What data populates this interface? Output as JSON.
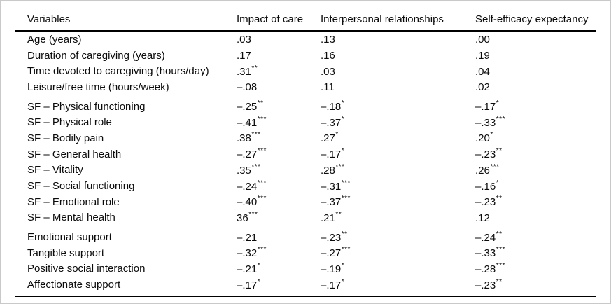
{
  "table": {
    "columns": [
      "Variables",
      "Impact of care",
      "Interpersonal relationships",
      "Self-efficacy expectancy"
    ],
    "rows": [
      {
        "variable": "Age (years)",
        "group_start": false,
        "cells": [
          {
            "value": ".03",
            "stars": ""
          },
          {
            "value": ".13",
            "stars": ""
          },
          {
            "value": ".00",
            "stars": ""
          }
        ]
      },
      {
        "variable": "Duration of caregiving (years)",
        "group_start": false,
        "cells": [
          {
            "value": ".17",
            "stars": ""
          },
          {
            "value": ".16",
            "stars": ""
          },
          {
            "value": ".19",
            "stars": ""
          }
        ]
      },
      {
        "variable": "Time devoted to caregiving (hours/day)",
        "group_start": false,
        "cells": [
          {
            "value": ".31",
            "stars": "**"
          },
          {
            "value": ".03",
            "stars": ""
          },
          {
            "value": ".04",
            "stars": ""
          }
        ]
      },
      {
        "variable": "Leisure/free time (hours/week)",
        "group_start": false,
        "cells": [
          {
            "value": "–.08",
            "stars": ""
          },
          {
            "value": ".11",
            "stars": ""
          },
          {
            "value": ".02",
            "stars": ""
          }
        ]
      },
      {
        "variable": "SF – Physical functioning",
        "group_start": true,
        "cells": [
          {
            "value": "–.25",
            "stars": "**"
          },
          {
            "value": "–.18",
            "stars": "*"
          },
          {
            "value": "–.17",
            "stars": "*"
          }
        ]
      },
      {
        "variable": "SF – Physical role",
        "group_start": false,
        "cells": [
          {
            "value": "–.41",
            "stars": "***"
          },
          {
            "value": "–.37",
            "stars": "*"
          },
          {
            "value": "–.33",
            "stars": "***"
          }
        ]
      },
      {
        "variable": "SF – Bodily pain",
        "group_start": false,
        "cells": [
          {
            "value": ".38",
            "stars": "***"
          },
          {
            "value": ".27",
            "stars": "*"
          },
          {
            "value": ".20",
            "stars": "*"
          }
        ]
      },
      {
        "variable": "SF – General health",
        "group_start": false,
        "cells": [
          {
            "value": "–.27",
            "stars": "***"
          },
          {
            "value": "–.17",
            "stars": "*"
          },
          {
            "value": "–.23",
            "stars": "**"
          }
        ]
      },
      {
        "variable": "SF – Vitality",
        "group_start": false,
        "cells": [
          {
            "value": ".35",
            "stars": "***"
          },
          {
            "value": ".28",
            "stars": "***"
          },
          {
            "value": ".26",
            "stars": "***"
          }
        ]
      },
      {
        "variable": "SF – Social functioning",
        "group_start": false,
        "cells": [
          {
            "value": "–.24",
            "stars": "***"
          },
          {
            "value": "–.31",
            "stars": "***"
          },
          {
            "value": "–.16",
            "stars": "*"
          }
        ]
      },
      {
        "variable": "SF – Emotional role",
        "group_start": false,
        "cells": [
          {
            "value": "–.40",
            "stars": "***"
          },
          {
            "value": "–.37",
            "stars": "***"
          },
          {
            "value": "–.23",
            "stars": "**"
          }
        ]
      },
      {
        "variable": "SF – Mental health",
        "group_start": false,
        "cells": [
          {
            "value": "36",
            "stars": "***"
          },
          {
            "value": ".21",
            "stars": "**"
          },
          {
            "value": ".12",
            "stars": ""
          }
        ]
      },
      {
        "variable": "Emotional support",
        "group_start": true,
        "cells": [
          {
            "value": "–.21",
            "stars": ""
          },
          {
            "value": "–.23",
            "stars": "**"
          },
          {
            "value": "–.24",
            "stars": "**"
          }
        ]
      },
      {
        "variable": "Tangible support",
        "group_start": false,
        "cells": [
          {
            "value": "–.32",
            "stars": "***"
          },
          {
            "value": "–.27",
            "stars": "***"
          },
          {
            "value": "–.33",
            "stars": "***"
          }
        ]
      },
      {
        "variable": "Positive social interaction",
        "group_start": false,
        "cells": [
          {
            "value": "–.21",
            "stars": "*"
          },
          {
            "value": "–.19",
            "stars": "*"
          },
          {
            "value": "–.28",
            "stars": "***"
          }
        ]
      },
      {
        "variable": "Affectionate support",
        "group_start": false,
        "cells": [
          {
            "value": "–.17",
            "stars": "*"
          },
          {
            "value": "–.17",
            "stars": "*"
          },
          {
            "value": "–.23",
            "stars": "**"
          }
        ]
      }
    ]
  }
}
